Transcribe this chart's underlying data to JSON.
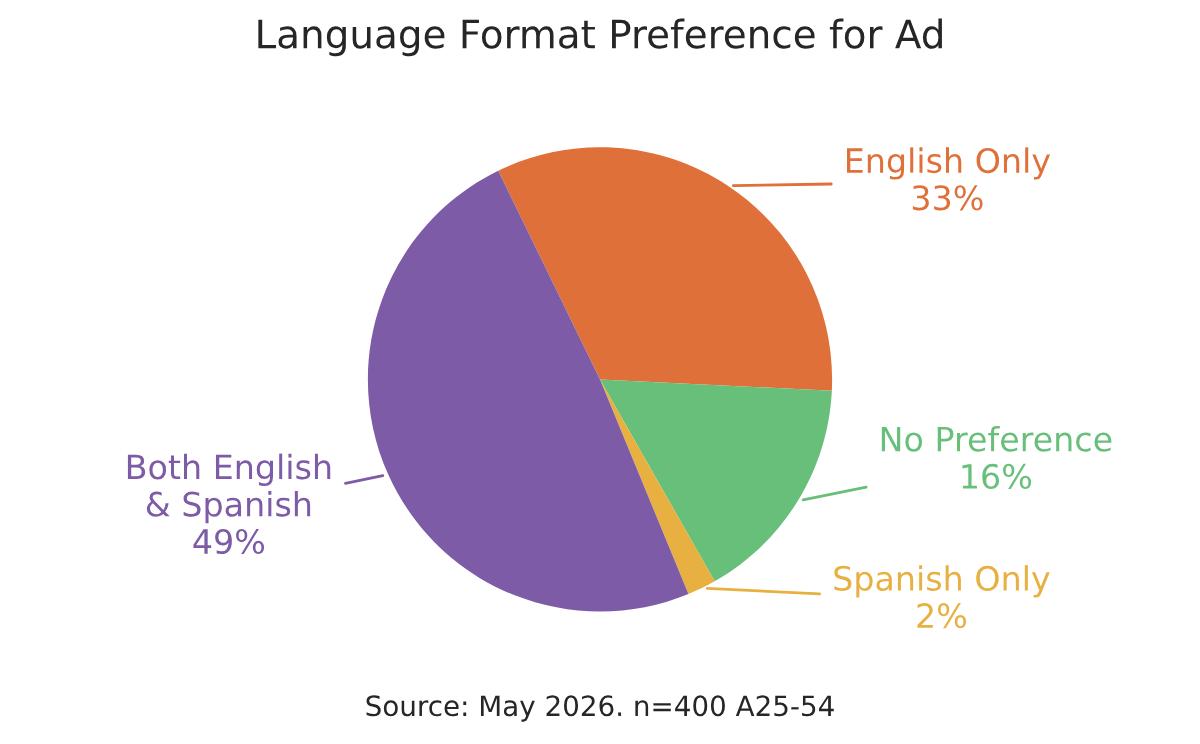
{
  "chart_data": {
    "type": "pie",
    "title": "Language Format Preference for Ad",
    "categories": [
      "English Only",
      "No Preference",
      "Spanish Only",
      "Both English & Spanish"
    ],
    "values": [
      33,
      16,
      2,
      49
    ],
    "value_labels": [
      "33%",
      "16%",
      "2%",
      "49%"
    ],
    "colors": [
      "#e07039",
      "#67bf7a",
      "#e8b040",
      "#7d5ba6"
    ],
    "annotations": [
      "Source: May 2026. n=400 A25-54"
    ]
  }
}
